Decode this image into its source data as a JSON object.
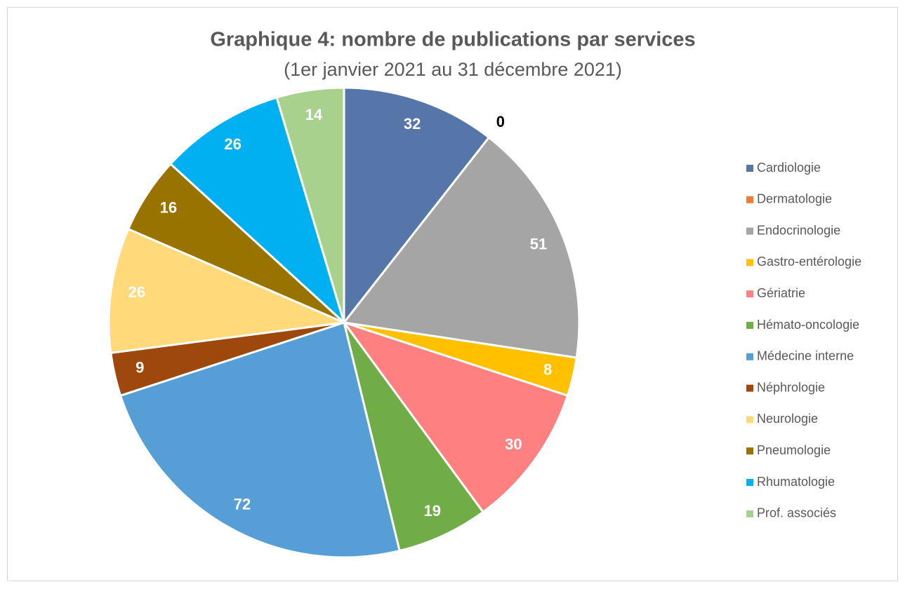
{
  "chart_data": {
    "type": "pie",
    "title": "Graphique 4: nombre de publications par services",
    "subtitle": "(1er janvier 2021 au 31 décembre 2021)",
    "categories": [
      "Cardiologie",
      "Dermatologie",
      "Endocrinologie",
      "Gastro-entérologie",
      "Gériatrie",
      "Hémato-oncologie",
      "Médecine interne",
      "Néphrologie",
      "Neurologie",
      "Pneumologie",
      "Rhumatologie",
      "Prof. associés"
    ],
    "values": [
      32,
      0,
      51,
      8,
      30,
      19,
      72,
      9,
      26,
      16,
      26,
      14
    ],
    "colors": [
      "#5675A9",
      "#ED7D31",
      "#A5A5A5",
      "#FFC000",
      "#FF8080",
      "#70AD47",
      "#559FD6",
      "#9E480E",
      "#FFD97A",
      "#997300",
      "#00B0F0",
      "#A9D18E"
    ],
    "legend": "right"
  }
}
